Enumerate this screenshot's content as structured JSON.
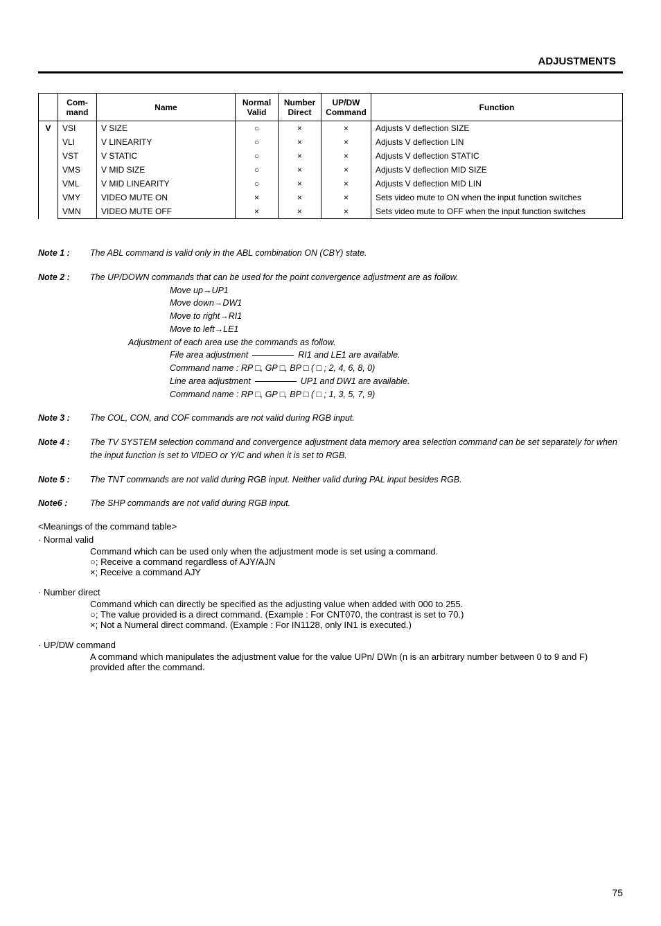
{
  "header": "ADJUSTMENTS",
  "table": {
    "headers": {
      "group": "",
      "command": "Com-\nmand",
      "name": "Name",
      "normal": "Normal\nValid",
      "number": "Number\nDirect",
      "updw": "UP/DW\nCommand",
      "function": "Function"
    },
    "groupLetter": "V",
    "rows": [
      {
        "cmd": "VSI",
        "name": "V SIZE",
        "nv": "○",
        "nd": "×",
        "ud": "×",
        "fn": "Adjusts V deflection SIZE"
      },
      {
        "cmd": "VLI",
        "name": "V LINEARITY",
        "nv": "○",
        "nd": "×",
        "ud": "×",
        "fn": "Adjusts V deflection LIN"
      },
      {
        "cmd": "VST",
        "name": "V STATIC",
        "nv": "○",
        "nd": "×",
        "ud": "×",
        "fn": "Adjusts V deflection STATIC"
      },
      {
        "cmd": "VMS",
        "name": "V MID SIZE",
        "nv": "○",
        "nd": "×",
        "ud": "×",
        "fn": "Adjusts V deflection MID SIZE"
      },
      {
        "cmd": "VML",
        "name": "V MID LINEARITY",
        "nv": "○",
        "nd": "×",
        "ud": "×",
        "fn": "Adjusts V deflection MID LIN"
      },
      {
        "cmd": "VMY",
        "name": "VIDEO MUTE ON",
        "nv": "×",
        "nd": "×",
        "ud": "×",
        "fn": "Sets video mute to ON when the input function switches"
      },
      {
        "cmd": "VMN",
        "name": "VIDEO MUTE OFF",
        "nv": "×",
        "nd": "×",
        "ud": "×",
        "fn": "Sets video mute to OFF when the input function switches"
      }
    ]
  },
  "notes": [
    {
      "label": "Note 1 :",
      "text": "The ABL command is valid only in the ABL combination ON (CBY) state."
    },
    {
      "label": "Note 2 :",
      "text": "The UP/DOWN commands that can be used for the point convergence adjustment are as follow.",
      "lines": [
        "Move up→UP1",
        "Move down→DW1",
        "Move to right→RI1",
        "Move to left→LE1"
      ],
      "sub2a": "Adjustment of each area use the commands as follow.",
      "sublines2": [
        {
          "pre": "File area adjustment",
          "post": "RI1 and LE1 are available."
        },
        {
          "plain": "Command name : RP □, GP □, BP □ ( □ ; 2, 4, 6, 8, 0)"
        },
        {
          "pre": "Line area adjustment",
          "post": "UP1 and DW1 are available."
        },
        {
          "plain": "Command name : RP □, GP □, BP □ ( □ ; 1, 3, 5, 7, 9)"
        }
      ]
    },
    {
      "label": "Note 3 :",
      "text": "The COL, CON, and COF commands are not valid during RGB input."
    },
    {
      "label": "Note 4 :",
      "text": "The TV SYSTEM selection command and convergence adjustment data memory area selection command can be set separately for when the input function is set to VIDEO or Y/C and when it is set to RGB."
    },
    {
      "label": "Note 5 :",
      "text": "The TNT commands are not valid during RGB input. Neither valid during PAL input besides RGB."
    },
    {
      "label": "Note6 :",
      "text": "The SHP commands are not valid during RGB input."
    }
  ],
  "meanings": {
    "title": "<Meanings of the command table>",
    "sections": [
      {
        "head": "· Normal valid",
        "lines": [
          "Command which can be used only when the adjustment mode is set using a command.",
          "○; Receive a command regardless of AJY/AJN",
          "×; Receive a command AJY"
        ]
      },
      {
        "head": "· Number direct",
        "lines": [
          "Command which can directly be specified as the adjusting value when added with 000 to 255.",
          "○; The value provided is a direct command. (Example : For CNT070, the contrast is set to 70.)",
          "×; Not a Numeral direct command. (Example : For IN1128, only IN1 is executed.)"
        ]
      },
      {
        "head": "· UP/DW command",
        "lines": [
          "A command which manipulates the adjustment value for the value UPn/ DWn (n is an arbitrary number between 0 to 9 and F) provided after the command."
        ]
      }
    ]
  },
  "pageNumber": "75"
}
